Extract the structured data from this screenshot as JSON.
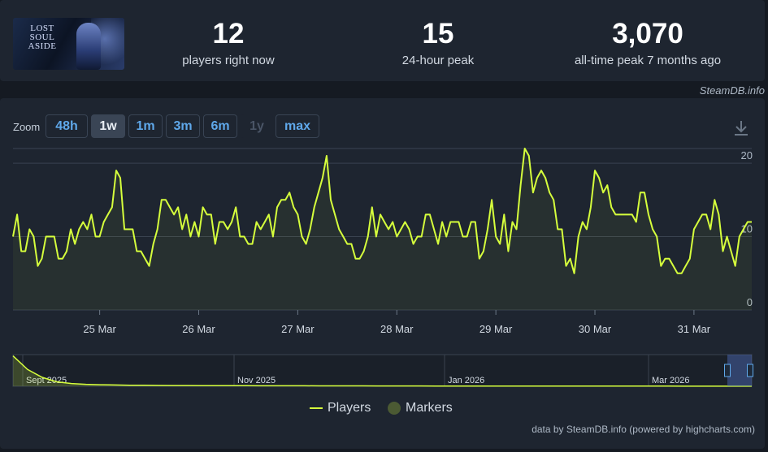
{
  "stats": [
    {
      "value": "12",
      "label": "players right now"
    },
    {
      "value": "15",
      "label": "24-hour peak"
    },
    {
      "value": "3,070",
      "label": "all-time peak 7 months ago"
    }
  ],
  "game_logo_text": "LOST SOUL ASIDE",
  "credit_top": "SteamDB.info",
  "zoom": {
    "label": "Zoom",
    "buttons": [
      "48h",
      "1w",
      "1m",
      "3m",
      "6m",
      "1y",
      "max"
    ],
    "active": "1w",
    "disabled": [
      "1y"
    ]
  },
  "icons": {
    "download": "download-icon"
  },
  "colors": {
    "series": "#d6ff3c",
    "marker": "#4b5a33",
    "accent": "#5fa8ea",
    "background": "#1e2530"
  },
  "chart_data": {
    "type": "line",
    "series": [
      {
        "name": "Players",
        "x": [
          0,
          1,
          2,
          3,
          4,
          5,
          6,
          7,
          8,
          9,
          10,
          11,
          12,
          13,
          14,
          15,
          16,
          17,
          18,
          19,
          20,
          21,
          22,
          23,
          24,
          25,
          26,
          27,
          28,
          29,
          30,
          31,
          32,
          33,
          34,
          35,
          36,
          37,
          38,
          39,
          40,
          41,
          42,
          43,
          44,
          45,
          46,
          47,
          48,
          49,
          50,
          51,
          52,
          53,
          54,
          55,
          56,
          57,
          58,
          59,
          60,
          61,
          62,
          63,
          64,
          65,
          66,
          67,
          68,
          69,
          70,
          71,
          72,
          73,
          74,
          75,
          76,
          77,
          78,
          79,
          80,
          81,
          82,
          83,
          84,
          85,
          86,
          87,
          88,
          89,
          90,
          91,
          92,
          93,
          94,
          95,
          96,
          97,
          98,
          99,
          100,
          101,
          102,
          103,
          104,
          105,
          106,
          107,
          108,
          109,
          110,
          111,
          112,
          113,
          114,
          115,
          116,
          117,
          118,
          119,
          120,
          121,
          122,
          123,
          124,
          125,
          126,
          127,
          128,
          129,
          130,
          131,
          132,
          133,
          134,
          135,
          136,
          137,
          138,
          139,
          140,
          141,
          142,
          143,
          144,
          145,
          146,
          147,
          148,
          149,
          150,
          151,
          152,
          153,
          154,
          155,
          156,
          157,
          158,
          159,
          160,
          161,
          162,
          163,
          164,
          165,
          166,
          167,
          168,
          169,
          170,
          171,
          172,
          173,
          174,
          175,
          176,
          177,
          178,
          179
        ],
        "values": [
          10,
          13,
          8,
          8,
          11,
          10,
          6,
          7,
          10,
          10,
          10,
          7,
          7,
          8,
          11,
          9,
          11,
          12,
          11,
          13,
          10,
          10,
          12,
          13,
          14,
          19,
          18,
          11,
          11,
          11,
          8,
          8,
          7,
          6,
          9,
          11,
          15,
          15,
          14,
          13,
          14,
          11,
          13,
          10,
          12,
          10,
          14,
          13,
          13,
          9,
          12,
          12,
          11,
          12,
          14,
          10,
          10,
          9,
          9,
          12,
          11,
          12,
          13,
          10,
          14,
          15,
          15,
          16,
          14,
          13,
          10,
          9,
          11,
          14,
          16,
          18,
          21,
          15,
          13,
          11,
          10,
          9,
          9,
          7,
          7,
          8,
          10,
          14,
          10,
          13,
          12,
          11,
          12,
          10,
          11,
          12,
          11,
          9,
          10,
          10,
          13,
          13,
          11,
          9,
          12,
          10,
          12,
          12,
          12,
          10,
          10,
          12,
          12,
          7,
          8,
          11,
          15,
          10,
          9,
          13,
          8,
          12,
          11,
          17,
          22,
          21,
          16,
          18,
          19,
          18,
          16,
          15,
          11,
          11,
          6,
          7,
          5,
          10,
          12,
          11,
          14,
          19,
          18,
          16,
          17,
          14,
          13,
          13,
          13,
          13,
          13,
          12,
          16,
          16,
          13,
          11,
          10,
          6,
          7,
          7,
          6,
          5,
          5,
          6,
          7,
          11,
          12,
          13,
          13,
          11,
          15,
          13,
          8,
          10,
          8,
          6,
          10,
          11,
          12,
          12
        ]
      }
    ],
    "x_tick_labels": [
      "25 Mar",
      "26 Mar",
      "27 Mar",
      "28 Mar",
      "29 Mar",
      "30 Mar",
      "31 Mar"
    ],
    "y_tick_labels": [
      "0",
      "10",
      "20"
    ],
    "ylim": [
      0,
      22
    ],
    "grid": true,
    "navigator": {
      "labels": [
        "Sept 2025",
        "Nov 2025",
        "Jan 2026",
        "Mar 2026"
      ],
      "values": [
        3070,
        1700,
        900,
        450,
        280,
        200,
        160,
        130,
        110,
        95,
        85,
        75,
        70,
        65,
        60,
        58,
        55,
        52,
        50,
        48,
        46,
        44,
        42,
        40,
        38,
        36,
        34,
        32,
        30,
        28,
        26,
        25,
        24,
        23,
        22,
        21,
        20,
        19,
        18,
        17,
        16,
        15,
        14,
        14,
        13,
        13,
        12,
        12,
        12,
        12
      ],
      "ylim": [
        0,
        3200
      ]
    },
    "legend": [
      "Players",
      "Markers"
    ],
    "legend_position": "bottom"
  },
  "credit_bottom": "data by SteamDB.info (powered by highcharts.com)"
}
